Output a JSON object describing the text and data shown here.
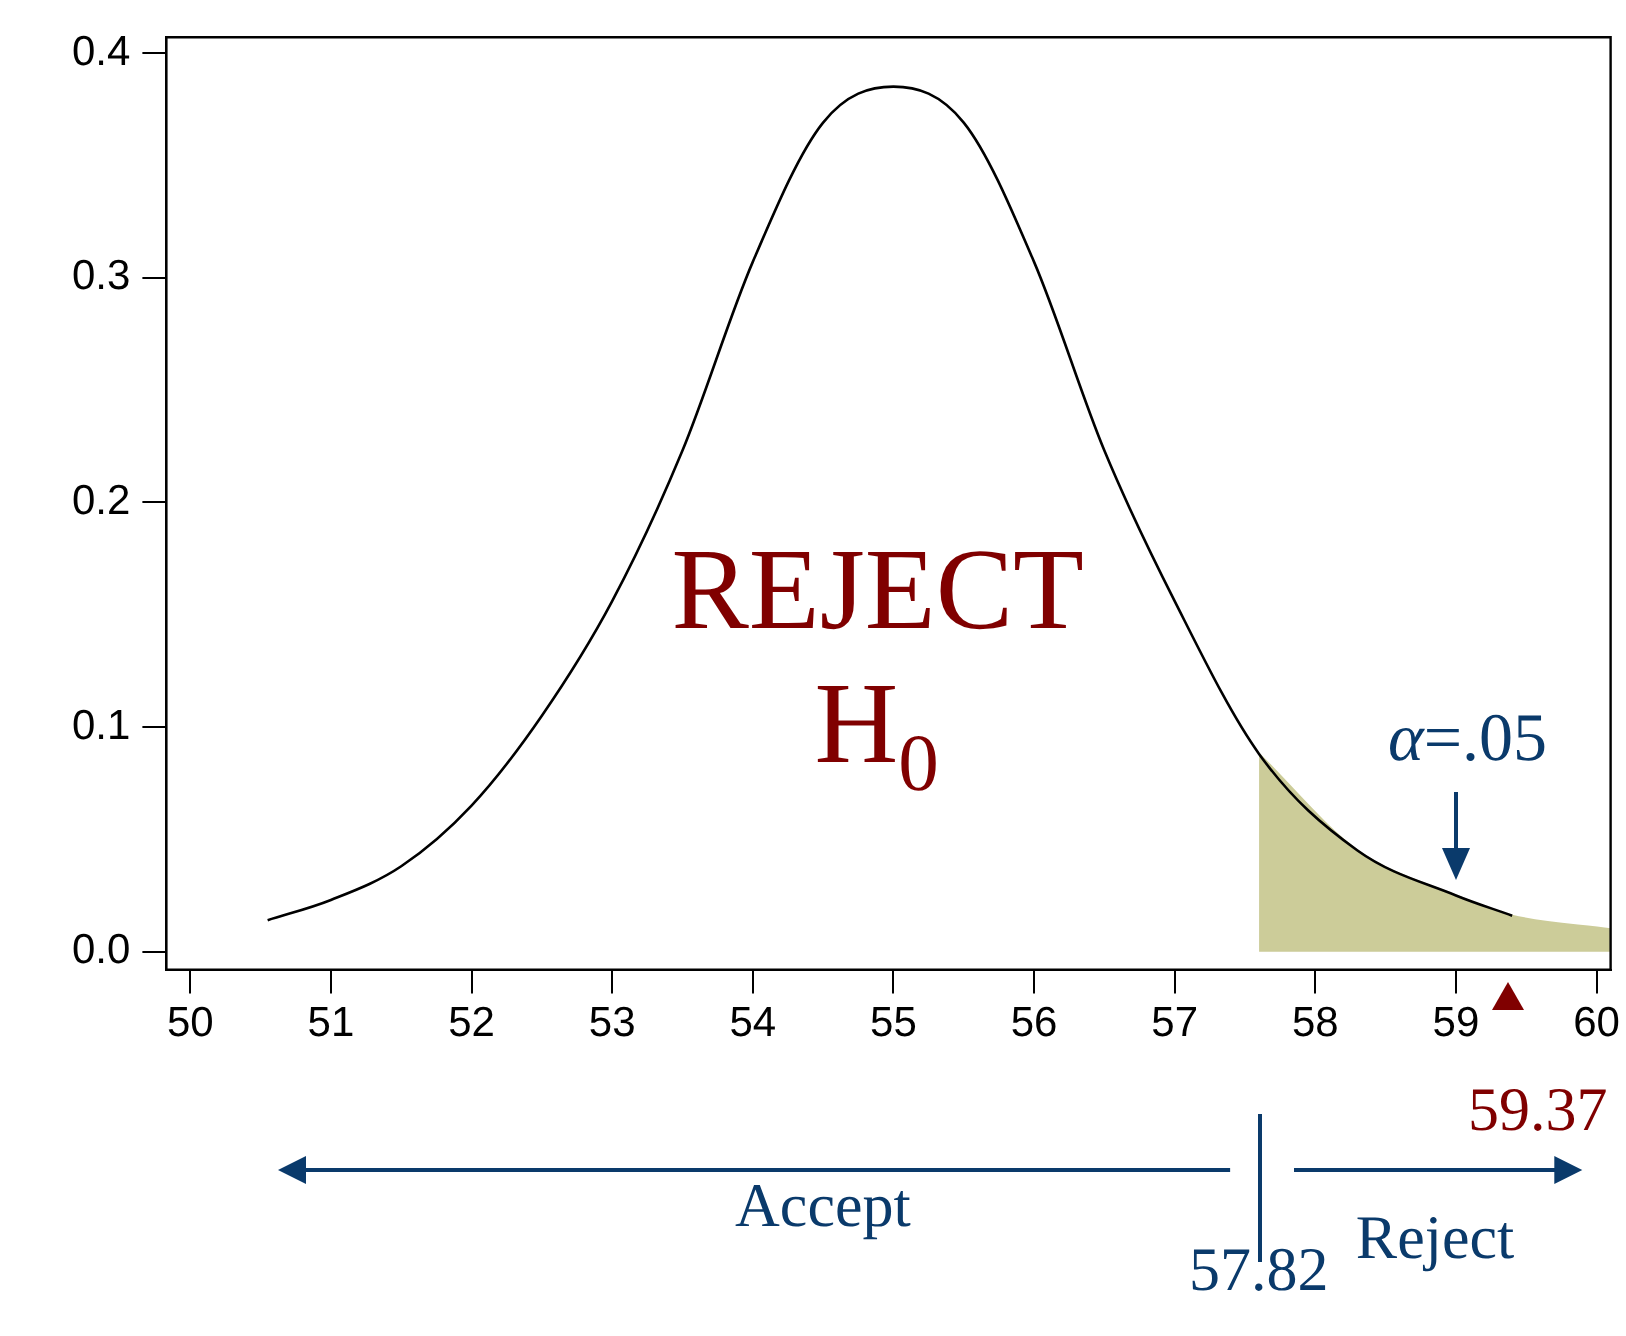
{
  "chart_data": {
    "type": "line",
    "xlim": [
      49.83,
      60.1
    ],
    "ylim": [
      -0.008,
      0.407
    ],
    "xticks": [
      50,
      51,
      52,
      53,
      54,
      55,
      56,
      57,
      58,
      59,
      60
    ],
    "yticks": [
      {
        "value": 0,
        "label": "0.0"
      },
      0.1,
      0.2,
      0.3,
      0.4
    ],
    "grid": false,
    "legend": false,
    "marker": "none",
    "line_style": "solid",
    "series": [
      {
        "color": "#000000",
        "x": [
          50.55,
          51,
          51.5,
          52,
          52.5,
          53,
          53.5,
          54,
          54.5,
          55,
          55.5,
          56,
          56.5,
          57,
          57.6,
          58.3,
          59,
          59.4
        ],
        "values": [
          0.014,
          0.023,
          0.038,
          0.065,
          0.105,
          0.156,
          0.223,
          0.307,
          0.369,
          0.385,
          0.369,
          0.307,
          0.223,
          0.156,
          0.088,
          0.045,
          0.025,
          0.016
        ]
      },
      {
        "type": "area",
        "color": "#cccc99",
        "x": [
          57.6,
          58.3,
          59,
          59.4,
          60.1
        ],
        "values": [
          0.088,
          0.045,
          0.025,
          0.016,
          0.01
        ]
      }
    ],
    "annotations": [
      "REJECT H$_{0}$",
      {
        "text": "α=.05",
        "x": 59,
        "y": 0.025
      },
      {
        "text": "59.37",
        "x": 59.37,
        "y": 0
      },
      "Accept",
      "Reject",
      "57.82"
    ]
  }
}
